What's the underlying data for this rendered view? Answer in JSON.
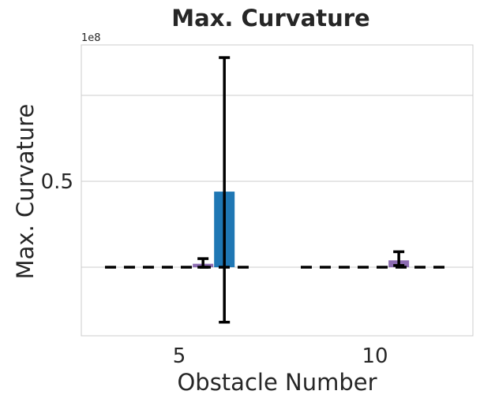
{
  "chart_data": {
    "type": "bar",
    "title": "Max. Curvature",
    "xlabel": "Obstacle Number",
    "ylabel": "Max. Curvature",
    "offset_text": "1e8",
    "categories": [
      "5",
      "10"
    ],
    "ylim": [
      -40000000.0,
      130000000.0
    ],
    "yticks": [
      {
        "value": 50000000.0,
        "label": "0.5"
      }
    ],
    "grid": true,
    "gridlines": [
      0,
      50000000.0,
      100000000.0
    ],
    "series": [
      {
        "color": "#8c6bb1",
        "values": [
          2000000.0,
          4000000.0
        ],
        "err_low": [
          0.0,
          1000000.0
        ],
        "err_high": [
          5000000.0,
          9000000.0
        ]
      },
      {
        "color": "#1f77b4",
        "values": [
          44000000.0,
          0.0
        ],
        "err_low": [
          -32000000.0,
          0.0
        ],
        "err_high": [
          122000000.0,
          0.0
        ]
      }
    ],
    "baseline": {
      "value": 0,
      "style": "dashed",
      "color": "#000000"
    }
  }
}
